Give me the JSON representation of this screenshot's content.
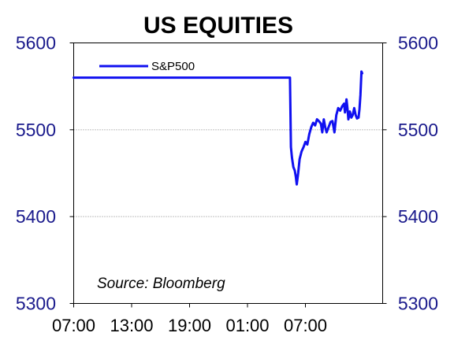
{
  "chart_data": {
    "type": "line",
    "title": "US EQUITIES",
    "source": "Source: Bloomberg",
    "ylim": [
      5300,
      5600
    ],
    "y_ticks": [
      "5300",
      "5400",
      "5500",
      "5600"
    ],
    "y_ticks_right": [
      "5300",
      "5400",
      "5500",
      "5600"
    ],
    "x_tick_labels": [
      "07:00",
      "13:00",
      "19:00",
      "01:00",
      "07:00"
    ],
    "grid": "horizontal dotted",
    "legend_placement": "top-left",
    "series": [
      {
        "name": "S&P500",
        "color": "#1010f0",
        "points": [
          [
            0,
            5560
          ],
          [
            22.4,
            5560
          ],
          [
            22.5,
            5480
          ],
          [
            22.6,
            5468
          ],
          [
            22.75,
            5457
          ],
          [
            22.9,
            5453
          ],
          [
            23.0,
            5446
          ],
          [
            23.1,
            5437
          ],
          [
            23.25,
            5450
          ],
          [
            23.4,
            5466
          ],
          [
            23.6,
            5475
          ],
          [
            23.8,
            5480
          ],
          [
            24.0,
            5486
          ],
          [
            24.2,
            5483
          ],
          [
            24.4,
            5495
          ],
          [
            24.6,
            5503
          ],
          [
            24.8,
            5508
          ],
          [
            25.0,
            5505
          ],
          [
            25.2,
            5512
          ],
          [
            25.4,
            5510
          ],
          [
            25.6,
            5507
          ],
          [
            25.75,
            5497
          ],
          [
            25.9,
            5512
          ],
          [
            26.05,
            5503
          ],
          [
            26.2,
            5497
          ],
          [
            26.4,
            5503
          ],
          [
            26.6,
            5509
          ],
          [
            26.8,
            5510
          ],
          [
            27.0,
            5497
          ],
          [
            27.2,
            5517
          ],
          [
            27.4,
            5525
          ],
          [
            27.6,
            5522
          ],
          [
            27.8,
            5527
          ],
          [
            28.0,
            5530
          ],
          [
            28.1,
            5520
          ],
          [
            28.25,
            5535
          ],
          [
            28.35,
            5525
          ],
          [
            28.45,
            5512
          ],
          [
            28.6,
            5521
          ],
          [
            28.75,
            5514
          ],
          [
            28.9,
            5517
          ],
          [
            29.05,
            5525
          ],
          [
            29.2,
            5517
          ],
          [
            29.35,
            5513
          ],
          [
            29.5,
            5514
          ],
          [
            29.6,
            5524
          ],
          [
            29.7,
            5540
          ],
          [
            29.8,
            5567
          ],
          [
            29.88,
            5565
          ]
        ]
      }
    ]
  }
}
